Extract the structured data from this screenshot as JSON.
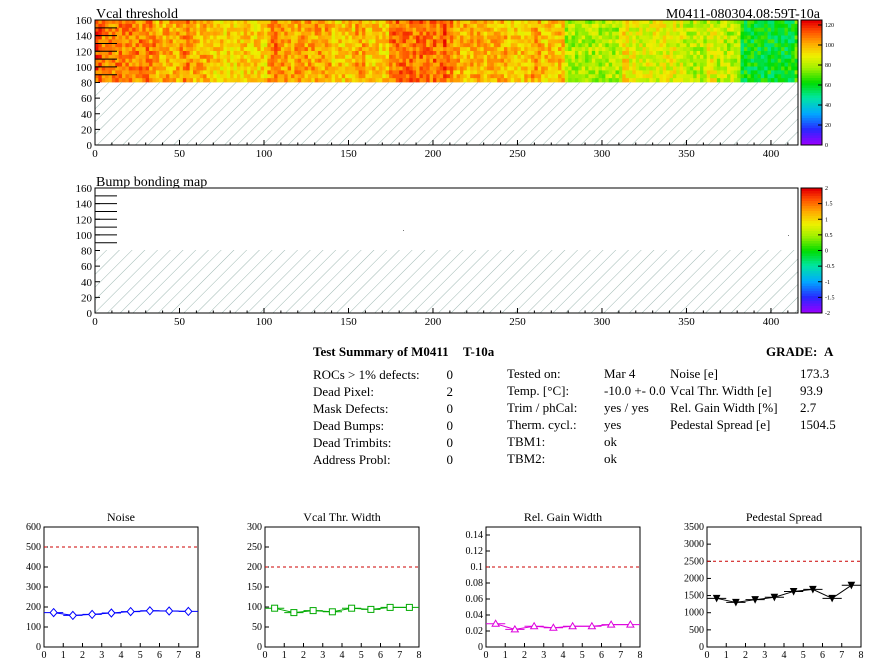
{
  "maps": [
    {
      "id": "vcal",
      "title": "Vcal threshold",
      "right_title": "M0411-080304.08:59T-10a",
      "xticks": [
        "0",
        "50",
        "100",
        "150",
        "200",
        "250",
        "300",
        "350",
        "400"
      ],
      "yticks": [
        "0",
        "20",
        "40",
        "60",
        "80",
        "100",
        "120",
        "140",
        "160"
      ],
      "palette_labels": [
        "0",
        "20",
        "40",
        "60",
        "80",
        "100",
        "120"
      ],
      "roc_values": [
        108,
        101,
        96,
        103,
        97,
        110,
        101,
        97,
        80,
        87,
        82,
        60
      ],
      "color_range": [
        0,
        125
      ]
    },
    {
      "id": "bump",
      "title": "Bump bonding map",
      "xticks": [
        "0",
        "50",
        "100",
        "150",
        "200",
        "250",
        "300",
        "350",
        "400"
      ],
      "yticks": [
        "0",
        "20",
        "40",
        "60",
        "80",
        "100",
        "120",
        "140",
        "160"
      ],
      "palette_labels": [
        "-2",
        "-1.5",
        "-1",
        "-0.5",
        "0",
        "0.5",
        "1",
        "1.5",
        "2"
      ],
      "color_range": [
        -2,
        2
      ]
    }
  ],
  "summary": {
    "title": "Test Summary of M0411",
    "run": "T-10a",
    "grade_label": "GRADE:",
    "grade": "A",
    "defects": [
      {
        "label": "ROCs > 1% defects:",
        "value": "0"
      },
      {
        "label": "Dead Pixel:",
        "value": "2"
      },
      {
        "label": "Mask Defects:",
        "value": "0"
      },
      {
        "label": "Dead Bumps:",
        "value": "0"
      },
      {
        "label": "Dead Trimbits:",
        "value": "0"
      },
      {
        "label": "Address Probl:",
        "value": "0"
      }
    ],
    "conditions": [
      {
        "label": "Tested on:",
        "value": "Mar 4"
      },
      {
        "label": "Temp. [°C]:",
        "value": "-10.0 +- 0.0"
      },
      {
        "label": "Trim / phCal:",
        "value": "yes / yes"
      },
      {
        "label": "Therm. cycl.:",
        "value": "yes"
      },
      {
        "label": "TBM1:",
        "value": "ok"
      },
      {
        "label": "TBM2:",
        "value": "ok"
      }
    ],
    "results": [
      {
        "label": "Noise [e]",
        "value": "173.3"
      },
      {
        "label": "Vcal Thr. Width [e]",
        "value": "93.9"
      },
      {
        "label": "Rel. Gain Width [%]",
        "value": "2.7"
      },
      {
        "label": "Pedestal Spread [e]",
        "value": "1504.5"
      }
    ]
  },
  "chart_data": [
    {
      "type": "line",
      "title": "Noise",
      "x": [
        0.5,
        1.5,
        2.5,
        3.5,
        4.5,
        5.5,
        6.5,
        7.5
      ],
      "y": [
        172,
        158,
        163,
        170,
        177,
        181,
        180,
        178
      ],
      "xlim": [
        0,
        8
      ],
      "ylim": [
        0,
        600
      ],
      "yticks": [
        "0",
        "100",
        "200",
        "300",
        "400",
        "500",
        "600"
      ],
      "xticks": [
        "0",
        "1",
        "2",
        "3",
        "4",
        "5",
        "6",
        "7",
        "8"
      ],
      "threshold": 500,
      "color": "#0000ff",
      "marker": "diamond"
    },
    {
      "type": "line",
      "title": "Vcal Thr. Width",
      "x": [
        0.5,
        1.5,
        2.5,
        3.5,
        4.5,
        5.5,
        6.5,
        7.5
      ],
      "y": [
        97,
        86,
        91,
        88,
        97,
        94,
        99,
        99
      ],
      "xlim": [
        0,
        8
      ],
      "ylim": [
        0,
        300
      ],
      "yticks": [
        "0",
        "50",
        "100",
        "150",
        "200",
        "250",
        "300"
      ],
      "xticks": [
        "0",
        "1",
        "2",
        "3",
        "4",
        "5",
        "6",
        "7",
        "8"
      ],
      "threshold": 200,
      "color": "#00aa00",
      "marker": "square"
    },
    {
      "type": "line",
      "title": "Rel. Gain Width",
      "x": [
        0.5,
        1.5,
        2.5,
        3.5,
        4.5,
        5.5,
        6.5,
        7.5
      ],
      "y": [
        0.029,
        0.022,
        0.026,
        0.024,
        0.026,
        0.026,
        0.028,
        0.028
      ],
      "xlim": [
        0,
        8
      ],
      "ylim": [
        0,
        0.15
      ],
      "yticks": [
        "0",
        "0.02",
        "0.04",
        "0.06",
        "0.08",
        "0.1",
        "0.12",
        "0.14"
      ],
      "xticks": [
        "0",
        "1",
        "2",
        "3",
        "4",
        "5",
        "6",
        "7",
        "8"
      ],
      "threshold": 0.1,
      "color": "#dd00dd",
      "marker": "triangle"
    },
    {
      "type": "line",
      "title": "Pedestal Spread",
      "x": [
        0.5,
        1.5,
        2.5,
        3.5,
        4.5,
        5.5,
        6.5,
        7.5
      ],
      "y": [
        1420,
        1300,
        1380,
        1450,
        1620,
        1680,
        1420,
        1800
      ],
      "xlim": [
        0,
        8
      ],
      "ylim": [
        0,
        3500
      ],
      "yticks": [
        "0",
        "500",
        "1000",
        "1500",
        "2000",
        "2500",
        "3000",
        "3500"
      ],
      "xticks": [
        "0",
        "1",
        "2",
        "3",
        "4",
        "5",
        "6",
        "7",
        "8"
      ],
      "threshold": 2500,
      "color": "#000000",
      "marker": "triangle-down"
    }
  ]
}
